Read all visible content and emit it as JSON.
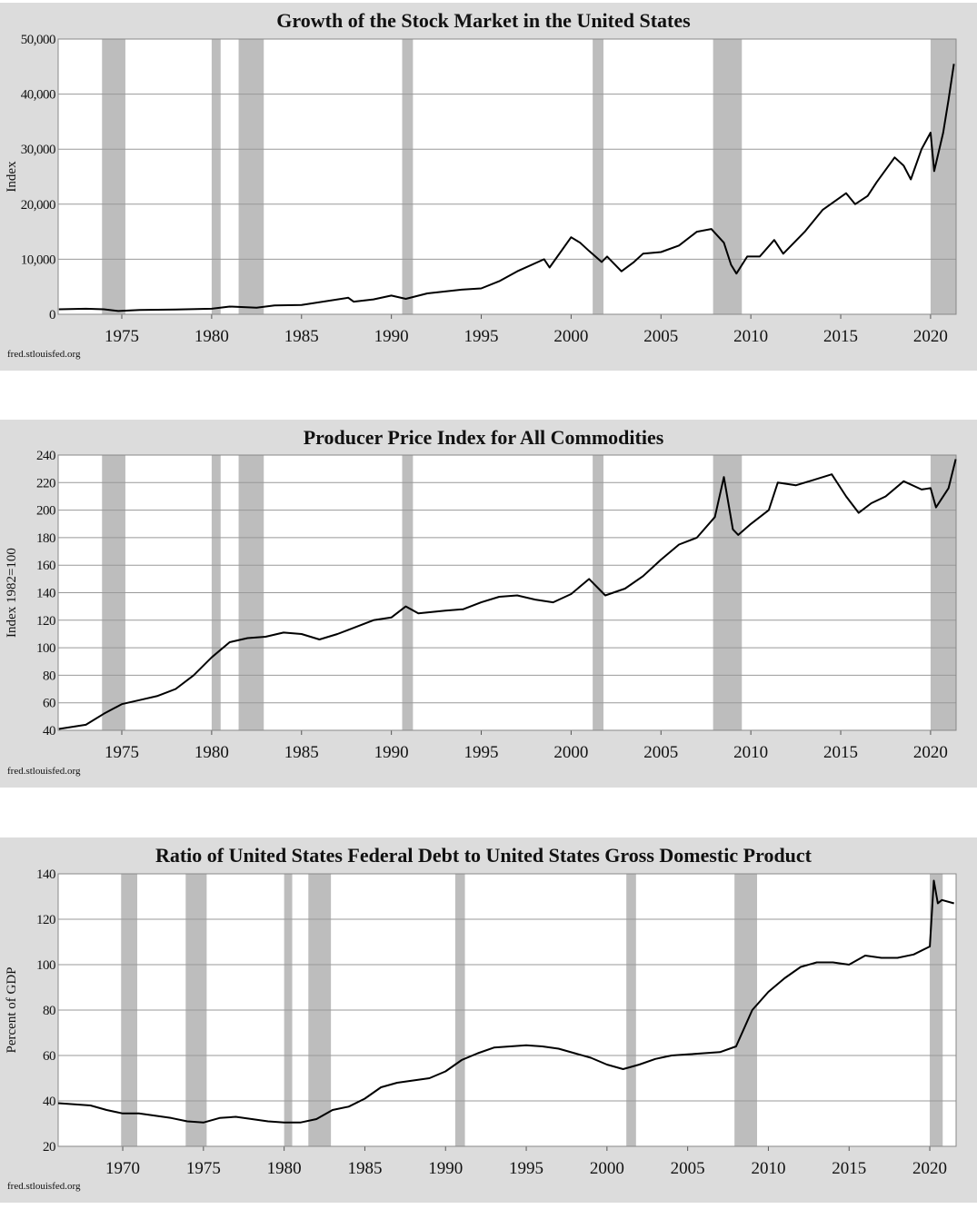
{
  "chart_data": [
    {
      "type": "line",
      "title": "Growth of the Stock Market in the United States",
      "y_label": "Index",
      "source": "fred.stlouisfed.org",
      "xlim": [
        1971.46,
        2021.42
      ],
      "xticks": [
        1975,
        1980,
        1985,
        1990,
        1995,
        2000,
        2005,
        2010,
        2015,
        2020
      ],
      "ylim": [
        0,
        50000
      ],
      "yticks": [
        0,
        {
          "value": 10000,
          "label": "10,000"
        },
        {
          "value": 20000,
          "label": "20,000"
        },
        {
          "value": 30000,
          "label": "30,000"
        },
        {
          "value": 40000,
          "label": "40,000"
        },
        {
          "value": 50000,
          "label": "50,000"
        }
      ],
      "grid": true,
      "recession_color": "#bdbdbd",
      "recessions": [
        [
          1973.9,
          1975.2
        ],
        [
          1980.0,
          1980.5
        ],
        [
          1981.5,
          1982.9
        ],
        [
          1990.6,
          1991.2
        ],
        [
          2001.2,
          2001.8
        ],
        [
          2007.9,
          2009.5
        ],
        [
          2020.0,
          2021.42
        ]
      ],
      "x": [
        1971.5,
        1973,
        1974,
        1974.8,
        1976,
        1978,
        1980,
        1981,
        1982.5,
        1983.5,
        1985,
        1987.6,
        1987.9,
        1989,
        1990,
        1990.8,
        1992,
        1994,
        1995,
        1996,
        1997,
        1998.5,
        1998.8,
        2000,
        2000.5,
        2001,
        2001.7,
        2002,
        2002.8,
        2003.5,
        2004,
        2005,
        2006,
        2007,
        2007.8,
        2008.5,
        2008.9,
        2009.2,
        2009.8,
        2010.5,
        2011.3,
        2011.8,
        2013,
        2014,
        2015.3,
        2015.8,
        2016.5,
        2017,
        2018,
        2018.5,
        2018.9,
        2019.5,
        2020.0,
        2020.2,
        2020.7,
        2021,
        2021.3
      ],
      "series": [
        {
          "color": "#000000",
          "values": [
            900,
            1000,
            900,
            600,
            800,
            850,
            1000,
            1400,
            1200,
            1600,
            1700,
            3000,
            2300,
            2700,
            3400,
            2800,
            3800,
            4500,
            4700,
            6000,
            7800,
            10000,
            8500,
            14000,
            13000,
            11500,
            9500,
            10500,
            7800,
            9500,
            11000,
            11300,
            12500,
            15000,
            15500,
            13000,
            9000,
            7400,
            10500,
            10500,
            13500,
            11000,
            15000,
            19000,
            22000,
            20000,
            21500,
            24000,
            28500,
            27000,
            24500,
            30000,
            33000,
            26000,
            33000,
            39000,
            45500
          ]
        }
      ]
    },
    {
      "type": "line",
      "title": "Producer Price Index for All Commodities",
      "y_label": "Index 1982=100",
      "source": "fred.stlouisfed.org",
      "xlim": [
        1971.46,
        2021.42
      ],
      "xticks": [
        1975,
        1980,
        1985,
        1990,
        1995,
        2000,
        2005,
        2010,
        2015,
        2020
      ],
      "ylim": [
        40,
        240
      ],
      "yticks": [
        40,
        60,
        80,
        100,
        120,
        140,
        160,
        180,
        200,
        220,
        240
      ],
      "grid": true,
      "recession_color": "#bdbdbd",
      "recessions": [
        [
          1973.9,
          1975.2
        ],
        [
          1980.0,
          1980.5
        ],
        [
          1981.5,
          1982.9
        ],
        [
          1990.6,
          1991.2
        ],
        [
          2001.2,
          2001.8
        ],
        [
          2007.9,
          2009.5
        ],
        [
          2020.0,
          2021.42
        ]
      ],
      "x": [
        1971.5,
        1973,
        1974,
        1975,
        1976,
        1977,
        1978,
        1979,
        1980,
        1981,
        1982,
        1983,
        1984,
        1985,
        1986,
        1987,
        1988,
        1989,
        1990,
        1990.8,
        1991.5,
        1993,
        1994,
        1995,
        1996,
        1997,
        1998,
        1999,
        2000,
        2001,
        2001.9,
        2003,
        2004,
        2005,
        2006,
        2007,
        2008,
        2008.5,
        2009,
        2009.3,
        2010,
        2011,
        2011.5,
        2012.5,
        2013.5,
        2014.5,
        2015.3,
        2016,
        2016.7,
        2017.5,
        2018.5,
        2019.5,
        2020,
        2020.3,
        2021,
        2021.4
      ],
      "series": [
        {
          "color": "#000000",
          "values": [
            41,
            44,
            52,
            59,
            62,
            65,
            70,
            80,
            93,
            104,
            107,
            108,
            111,
            110,
            106,
            110,
            115,
            120,
            122,
            130,
            125,
            127,
            128,
            133,
            137,
            138,
            135,
            133,
            139,
            150,
            138,
            143,
            152,
            164,
            175,
            180,
            195,
            224,
            186,
            182,
            190,
            200,
            220,
            218,
            222,
            226,
            210,
            198,
            205,
            210,
            221,
            215,
            216,
            202,
            216,
            237
          ]
        }
      ]
    },
    {
      "type": "line",
      "title": "Ratio of United States Federal Debt to United States Gross Domestic Product",
      "y_label": "Percent of GDP",
      "source": "fred.stlouisfed.org",
      "xlim": [
        1966.0,
        2021.63
      ],
      "xticks": [
        1970,
        1975,
        1980,
        1985,
        1990,
        1995,
        2000,
        2005,
        2010,
        2015,
        2020
      ],
      "ylim": [
        20,
        140
      ],
      "yticks": [
        20,
        40,
        60,
        80,
        100,
        120,
        140
      ],
      "grid": true,
      "recession_color": "#bdbdbd",
      "recessions": [
        [
          1969.9,
          1970.9
        ],
        [
          1973.9,
          1975.2
        ],
        [
          1980.0,
          1980.5
        ],
        [
          1981.5,
          1982.9
        ],
        [
          1990.6,
          1991.2
        ],
        [
          2001.2,
          2001.8
        ],
        [
          2007.9,
          2009.3
        ],
        [
          2020.0,
          2020.8
        ]
      ],
      "x": [
        1966,
        1967,
        1968,
        1969,
        1970,
        1971,
        1972,
        1973,
        1974,
        1975,
        1976,
        1977,
        1978,
        1979,
        1980,
        1981,
        1982,
        1983,
        1984,
        1985,
        1986,
        1987,
        1988,
        1989,
        1990,
        1991,
        1992,
        1993,
        1994,
        1995,
        1996,
        1997,
        1998,
        1999,
        2000,
        2001,
        2002,
        2003,
        2004,
        2005,
        2006,
        2007,
        2008,
        2009,
        2010,
        2011,
        2012,
        2013,
        2014,
        2015,
        2016,
        2017,
        2018,
        2019,
        2020,
        2020.25,
        2020.5,
        2020.75,
        2021.5
      ],
      "series": [
        {
          "color": "#000000",
          "values": [
            39,
            38.5,
            38,
            36,
            34.5,
            34.5,
            33.5,
            32.5,
            31,
            30.5,
            32.5,
            33,
            32,
            31,
            30.5,
            30.5,
            32,
            36,
            37.5,
            41,
            46,
            48,
            49,
            50,
            53,
            58,
            61,
            63.5,
            64,
            64.5,
            64,
            63,
            61,
            59,
            56,
            54,
            56,
            58.5,
            60,
            60.5,
            61,
            61.5,
            64,
            80,
            88,
            94,
            99,
            101,
            101,
            100,
            104,
            103,
            103,
            104.5,
            108,
            137,
            127,
            128.5,
            127
          ]
        }
      ]
    }
  ]
}
